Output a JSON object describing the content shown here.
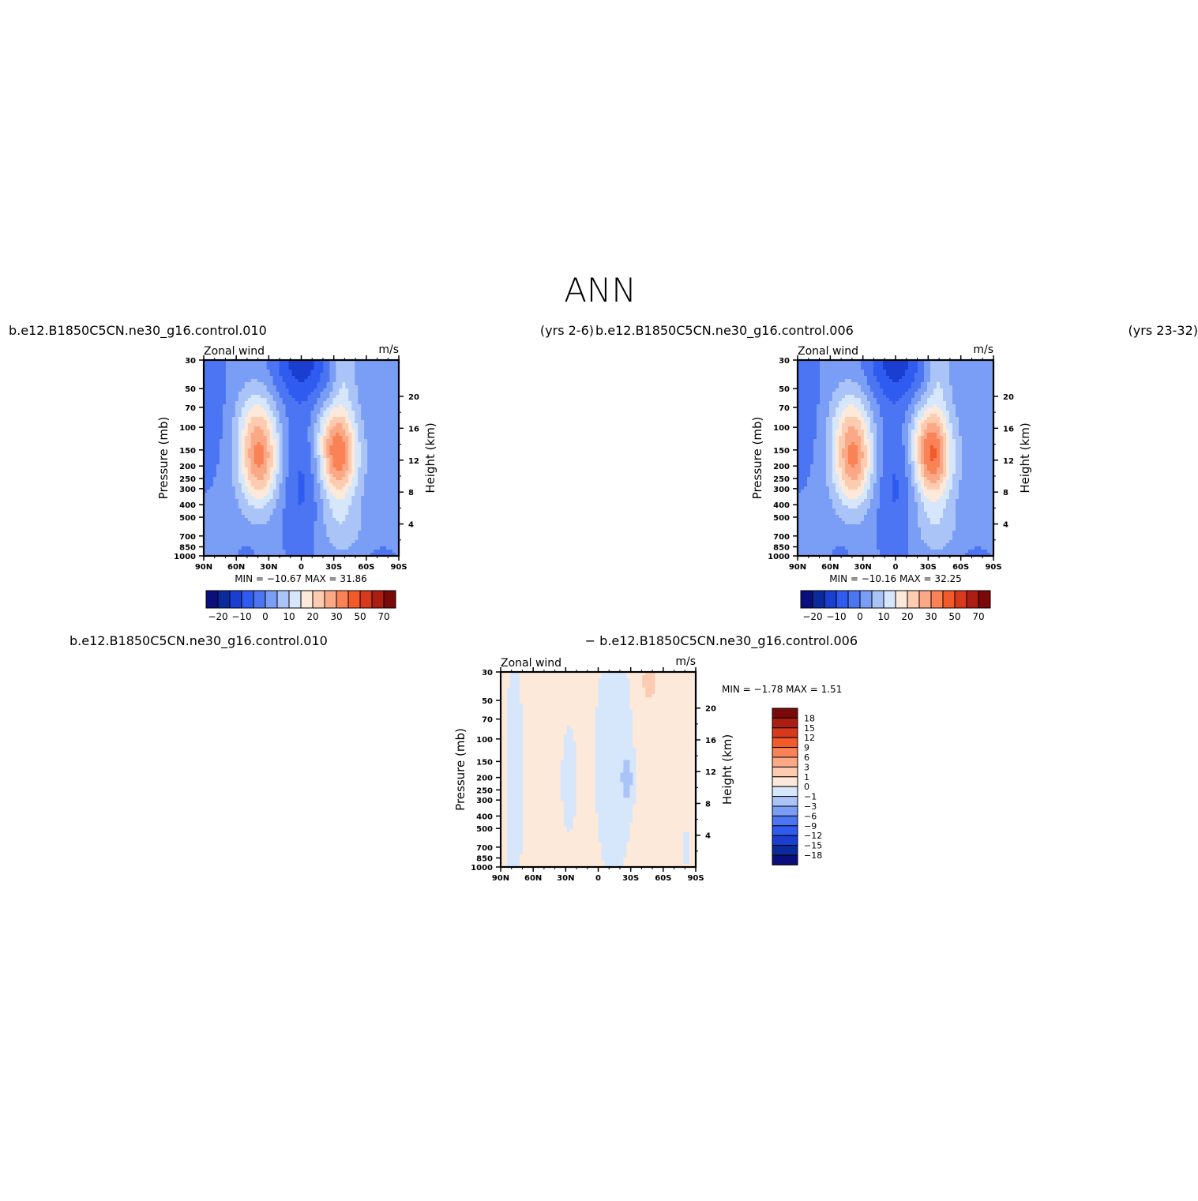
{
  "page": {
    "title": "ANN"
  },
  "palette": {
    "levels": [
      -25,
      -20,
      -15,
      -10,
      -5,
      0,
      5,
      10,
      15,
      20,
      25,
      30,
      40,
      50,
      60,
      70
    ],
    "colors": [
      "#0a0f7d",
      "#0b2a9c",
      "#1a3ed0",
      "#2f5bf0",
      "#4b75f2",
      "#7a9df5",
      "#aac4f8",
      "#d6e6fb",
      "#fde9d9",
      "#fdcbb0",
      "#fba887",
      "#f98256",
      "#f25a2a",
      "#d6391b",
      "#ad1e12",
      "#7a0a0a"
    ]
  },
  "diff_palette": {
    "levels": [
      -18,
      -15,
      -12,
      -9,
      -6,
      -3,
      -1,
      0,
      1,
      3,
      6,
      9,
      12,
      15,
      18
    ],
    "colors": [
      "#0a0f7d",
      "#0b2a9c",
      "#1a3ed0",
      "#2f5bf0",
      "#4b75f2",
      "#7a9df5",
      "#aac4f8",
      "#d6e6fb",
      "#fde9d9",
      "#fdcbb0",
      "#fba887",
      "#f98256",
      "#f25a2a",
      "#d6391b",
      "#ad1e12",
      "#7a0a0a"
    ]
  },
  "panels": [
    {
      "left_title": "b.e12.B1850C5CN.ne30_g16.control.010",
      "right_title": "(yrs 2-6)",
      "var_label": "Zonal wind",
      "units": "m/s",
      "min_max": "MIN =  −10.67    MAX =    31.86"
    },
    {
      "left_title": "b.e12.B1850C5CN.ne30_g16.control.006",
      "right_title": "(yrs 23-32)",
      "var_label": "Zonal wind",
      "units": "m/s",
      "min_max": "MIN =  −10.16    MAX =    32.25"
    },
    {
      "left_title": "b.e12.B1850C5CN.ne30_g16.control.010",
      "right_title": "− b.e12.B1850C5CN.ne30_g16.control.006",
      "var_label": "Zonal wind",
      "units": "m/s",
      "min_max": "MIN =    −1.78    MAX =      1.51"
    }
  ],
  "chart_data": [
    {
      "type": "heatmap",
      "title": "b.e12.B1850C5CN.ne30_g16.control.010 (yrs 2-6)",
      "xlabel": "",
      "ylabel": "Pressure (mb)",
      "ylabel_right": "Height (km)",
      "x_ticks": [
        "90N",
        "60N",
        "30N",
        "0",
        "30S",
        "60S",
        "90S"
      ],
      "y_ticks": [
        30,
        50,
        70,
        100,
        150,
        200,
        250,
        300,
        400,
        500,
        700,
        850,
        1000
      ],
      "y_right_ticks": [
        4,
        8,
        12,
        16,
        20
      ],
      "ylim": [
        1000,
        30
      ],
      "colorbar_labels": [
        "−20",
        "−10",
        "0",
        "10",
        "20",
        "30",
        "50",
        "70"
      ],
      "min": -10.67,
      "max": 31.86,
      "jets": [
        {
          "lat": 32,
          "pressure": 200,
          "max": 25
        },
        {
          "lat": -45,
          "pressure": 200,
          "max": 31.86
        }
      ]
    },
    {
      "type": "heatmap",
      "title": "b.e12.B1850C5CN.ne30_g16.control.006 (yrs 23-32)",
      "xlabel": "",
      "ylabel": "Pressure (mb)",
      "ylabel_right": "Height (km)",
      "x_ticks": [
        "90N",
        "60N",
        "30N",
        "0",
        "30S",
        "60S",
        "90S"
      ],
      "y_ticks": [
        30,
        50,
        70,
        100,
        150,
        200,
        250,
        300,
        400,
        500,
        700,
        850,
        1000
      ],
      "y_right_ticks": [
        4,
        8,
        12,
        16,
        20
      ],
      "ylim": [
        1000,
        30
      ],
      "colorbar_labels": [
        "−20",
        "−10",
        "0",
        "10",
        "20",
        "30",
        "50",
        "70"
      ],
      "min": -10.16,
      "max": 32.25,
      "jets": [
        {
          "lat": 32,
          "pressure": 200,
          "max": 25
        },
        {
          "lat": -45,
          "pressure": 200,
          "max": 32.25
        }
      ]
    },
    {
      "type": "heatmap",
      "title": "b.e12.B1850C5CN.ne30_g16.control.010 − b.e12.B1850C5CN.ne30_g16.control.006",
      "xlabel": "",
      "ylabel": "Pressure (mb)",
      "ylabel_right": "Height (km)",
      "x_ticks": [
        "90N",
        "60N",
        "30N",
        "0",
        "30S",
        "60S",
        "90S"
      ],
      "y_ticks": [
        30,
        50,
        70,
        100,
        150,
        200,
        250,
        300,
        400,
        500,
        700,
        850,
        1000
      ],
      "y_right_ticks": [
        4,
        8,
        12,
        16,
        20
      ],
      "ylim": [
        1000,
        30
      ],
      "colorbar_labels": [
        "18",
        "15",
        "12",
        "9",
        "6",
        "3",
        "1",
        "0",
        "−1",
        "−3",
        "−6",
        "−9",
        "−12",
        "−15",
        "−18"
      ],
      "min": -1.78,
      "max": 1.51
    }
  ]
}
